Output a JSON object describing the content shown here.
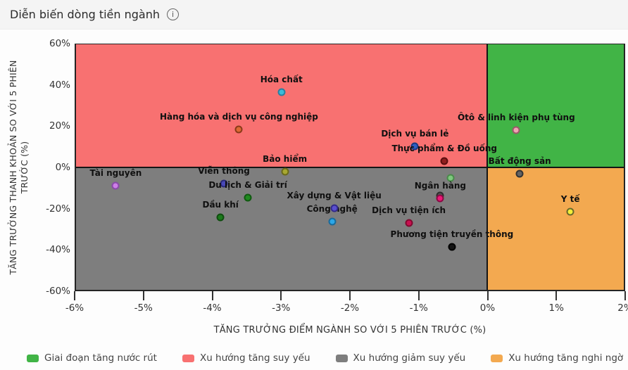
{
  "header": {
    "title": "Diễn biến dòng tiền ngành",
    "info_icon_glyph": "i"
  },
  "chart_data": {
    "type": "scatter",
    "xlabel": "TĂNG TRƯỞNG ĐIỂM NGÀNH SO VỚI 5 PHIÊN TRƯỚC (%)",
    "ylabel_line1": "TĂNG TRƯỞNG THANH KHOẢN SO VỚI 5 PHIÊN",
    "ylabel_line2": "TRƯỚC (%)",
    "xlim": [
      -6,
      2
    ],
    "ylim": [
      -60,
      60
    ],
    "x_ticks": [
      "-6%",
      "-5%",
      "-4%",
      "-3%",
      "-2%",
      "-1%",
      "0%",
      "1%",
      "2%"
    ],
    "y_ticks": [
      "60%",
      "40%",
      "20%",
      "0%",
      "-20%",
      "-40%",
      "-60%"
    ],
    "grid": false,
    "quadrants": [
      {
        "name": "Xu hướng tăng suy yếu",
        "area": "top-left",
        "color": "#f87171"
      },
      {
        "name": "Giai đoạn tăng nước rút",
        "area": "top-right",
        "color": "#41b446"
      },
      {
        "name": "Xu hướng giảm suy yếu",
        "area": "bottom-left",
        "color": "#7e7e7e"
      },
      {
        "name": "Xu hướng tăng nghi ngờ",
        "area": "bottom-right",
        "color": "#f3a950"
      }
    ],
    "points": [
      {
        "label": "Hóa chất",
        "x": -3.0,
        "y": 36.5,
        "color": "#3bbcd9",
        "border": "#2a7fa0"
      },
      {
        "label": "Hàng hóa và dịch vụ công nghiệp",
        "x": -3.62,
        "y": 18.5,
        "color": "#dd6a33",
        "border": "#8a3a1a"
      },
      {
        "label": "Ôtô & linh kiện phụ tùng",
        "x": 0.43,
        "y": 18.0,
        "color": "#f2a3b3",
        "border": "#9a5a6a"
      },
      {
        "label": "Dịch vụ bán lẻ",
        "x": -1.05,
        "y": 10.0,
        "color": "#2f5fc4",
        "border": "#1a3a80",
        "behind": true
      },
      {
        "label": "Thực phẩm & Đồ uống",
        "x": -0.62,
        "y": 3.0,
        "color": "#8f1f1f",
        "border": "#5a0f0f"
      },
      {
        "label": "Bảo hiểm",
        "x": -2.95,
        "y": -2.2,
        "color": "#a8a832",
        "border": "#6a6a1a"
      },
      {
        "label": "Bất động sản",
        "x": 0.48,
        "y": -3.4,
        "color": "#636363",
        "border": "#333333"
      },
      {
        "label": "Tài nguyên",
        "x": -5.42,
        "y": -9.0,
        "color": "#ce7fe8",
        "border": "#8a4aa8"
      },
      {
        "label": "Viễn thông",
        "x": -3.84,
        "y": -8.0,
        "color": "#4848b8",
        "border": "#2a2a7a",
        "behind": true
      },
      {
        "label": "",
        "x": -0.53,
        "y": -5.3,
        "color": "#7ec87e",
        "border": "#4a8a4a",
        "behind": true
      },
      {
        "label": "Du lịch & Giải trí",
        "x": -3.49,
        "y": -15.0,
        "color": "#1f8a1f",
        "border": "#0f5a0f"
      },
      {
        "label": "",
        "x": -0.68,
        "y": -14.0,
        "color": "#555555",
        "border": "#2e2e2e"
      },
      {
        "label": "Ngân hàng",
        "x": -0.68,
        "y": -15.3,
        "color": "#ee1777",
        "border": "#8a0a44"
      },
      {
        "label": "Xây dựng & Vật liệu",
        "x": -2.23,
        "y": -20.0,
        "color": "#5a4fd0",
        "border": "#332a8a"
      },
      {
        "label": "Dầu khí",
        "x": -3.89,
        "y": -24.5,
        "color": "#1a7a1a",
        "border": "#0e4d0e"
      },
      {
        "label": "Công nghệ",
        "x": -2.26,
        "y": -26.5,
        "color": "#2ba7e8",
        "border": "#1a6a9a"
      },
      {
        "label": "Dịch vụ tiện ích",
        "x": -1.14,
        "y": -27.2,
        "color": "#c81050",
        "border": "#800a30"
      },
      {
        "label": "Y tế",
        "x": 1.22,
        "y": -22.0,
        "color": "#f2ee3a",
        "border": "#6a6a2a"
      },
      {
        "label": "Phương tiện truyền thông",
        "x": -0.51,
        "y": -39.0,
        "color": "#141414",
        "border": "#000000"
      }
    ]
  },
  "legend": [
    {
      "label": "Giai đoạn tăng nước rút",
      "color": "#41b446"
    },
    {
      "label": "Xu hướng tăng suy yếu",
      "color": "#f87171"
    },
    {
      "label": "Xu hướng giảm suy yếu",
      "color": "#7e7e7e"
    },
    {
      "label": "Xu hướng tăng nghi ngờ",
      "color": "#f3a950"
    }
  ]
}
